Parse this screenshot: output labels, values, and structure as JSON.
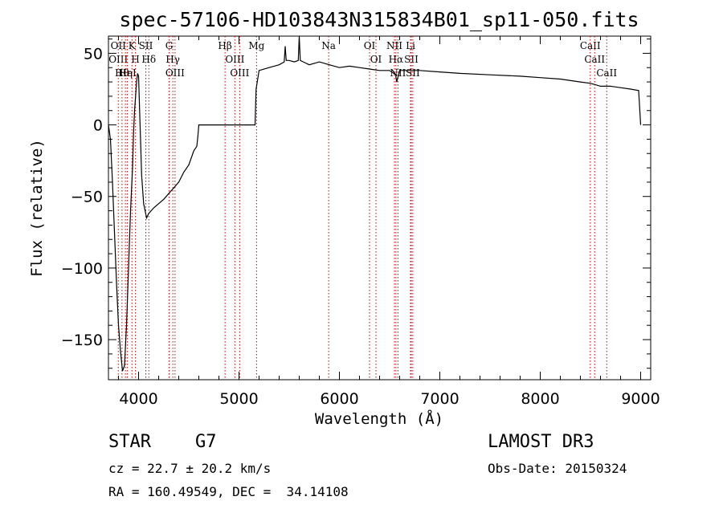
{
  "chart_data": {
    "type": "line",
    "title": "spec-57106-HD103843N315834B01_sp11-050.fits",
    "xlabel": "Wavelength (Å)",
    "ylabel": "Flux (relative)",
    "xlim": [
      3700,
      9100
    ],
    "ylim": [
      -178,
      62
    ],
    "xticks": [
      4000,
      5000,
      6000,
      7000,
      8000,
      9000
    ],
    "xtick_labels": [
      "4000",
      "5000",
      "6000",
      "7000",
      "8000",
      "9000"
    ],
    "yticks": [
      -150,
      -100,
      -50,
      0,
      50
    ],
    "ytick_labels": [
      "−150",
      "−100",
      "−50",
      "0",
      "50"
    ],
    "grid": false,
    "line_color": "#000000",
    "marker_color": "#cc0000",
    "series": [
      {
        "x": [
          3700,
          3720,
          3740,
          3760,
          3780,
          3800,
          3820,
          3840,
          3860,
          3880,
          3900,
          3920,
          3940,
          3950,
          3960,
          3970,
          3980,
          3990,
          4000,
          4010,
          4030,
          4050,
          4080,
          4100,
          4150,
          4200,
          4250,
          4300,
          4350,
          4400,
          4450,
          4500,
          4550,
          4580,
          4590,
          4600,
          4800,
          5000,
          5160,
          5170,
          5200,
          5300,
          5400,
          5450,
          5460,
          5470,
          5500,
          5550,
          5590,
          5600,
          5610,
          5700,
          5800,
          5900,
          6000,
          6100,
          6200,
          6300,
          6400,
          6500,
          6560,
          6570,
          6600,
          6700,
          6800,
          7000,
          7200,
          7500,
          7800,
          8000,
          8200,
          8400,
          8500,
          8550,
          8600,
          8700,
          8800,
          8900,
          8980,
          9000
        ],
        "y": [
          0,
          -10,
          -40,
          -75,
          -110,
          -140,
          -158,
          -172,
          -168,
          -140,
          -100,
          -60,
          -30,
          -5,
          10,
          20,
          30,
          36,
          34,
          10,
          -35,
          -55,
          -65,
          -62,
          -58,
          -55,
          -52,
          -48,
          -44,
          -40,
          -33,
          -28,
          -18,
          -15,
          -8,
          0,
          0,
          0,
          0,
          25,
          38,
          40,
          42,
          44,
          55,
          45,
          45,
          44,
          45,
          62,
          45,
          42,
          44,
          42,
          40,
          41,
          40,
          39,
          38,
          38,
          35,
          30,
          38,
          38,
          38,
          37,
          36,
          35,
          34,
          33,
          32,
          30,
          29,
          28,
          27,
          27,
          26,
          25,
          24,
          0
        ]
      }
    ],
    "markers": [
      {
        "x": 3798,
        "labels": [
          "OII",
          "OIII"
        ]
      },
      {
        "x": 3835,
        "labels": [
          "Hθ"
        ]
      },
      {
        "x": 3869,
        "labels": [
          "Hη"
        ]
      },
      {
        "x": 3889,
        "labels": [
          "HeI"
        ]
      },
      {
        "x": 3934,
        "labels": [
          "K"
        ]
      },
      {
        "x": 3969,
        "labels": [
          "H"
        ]
      },
      {
        "x": 4072,
        "labels": [
          "SII"
        ]
      },
      {
        "x": 4102,
        "labels": [
          "Hδ"
        ]
      },
      {
        "x": 4304,
        "labels": [
          "G"
        ]
      },
      {
        "x": 4341,
        "labels": [
          "Hγ"
        ]
      },
      {
        "x": 4363,
        "labels": [
          "OIII"
        ]
      },
      {
        "x": 4861,
        "labels": [
          "Hβ"
        ]
      },
      {
        "x": 4959,
        "labels": [
          "OIII"
        ]
      },
      {
        "x": 5007,
        "labels": [
          "OIII"
        ]
      },
      {
        "x": 5175,
        "labels": [
          "Mg"
        ]
      },
      {
        "x": 5893,
        "labels": [
          "Na"
        ]
      },
      {
        "x": 6300,
        "labels": [
          "OI"
        ]
      },
      {
        "x": 6364,
        "labels": [
          "OI"
        ]
      },
      {
        "x": 6548,
        "labels": [
          "NII"
        ]
      },
      {
        "x": 6563,
        "labels": [
          "Hα"
        ]
      },
      {
        "x": 6583,
        "labels": [
          "NII"
        ]
      },
      {
        "x": 6708,
        "labels": [
          "Li"
        ]
      },
      {
        "x": 6716,
        "labels": [
          "SII"
        ]
      },
      {
        "x": 6731,
        "labels": [
          "SII"
        ]
      },
      {
        "x": 8498,
        "labels": [
          "CaII"
        ]
      },
      {
        "x": 8542,
        "labels": [
          "CaII"
        ]
      },
      {
        "x": 8662,
        "labels": [
          "CaII"
        ]
      }
    ]
  },
  "info": {
    "class": "STAR",
    "subclass": "G7",
    "survey": "LAMOST DR3",
    "cz": "cz = 22.7 ± 20.2 km/s",
    "obs_date": "Obs-Date: 20150324",
    "coords": "RA = 160.49549, DEC =  34.14108"
  }
}
